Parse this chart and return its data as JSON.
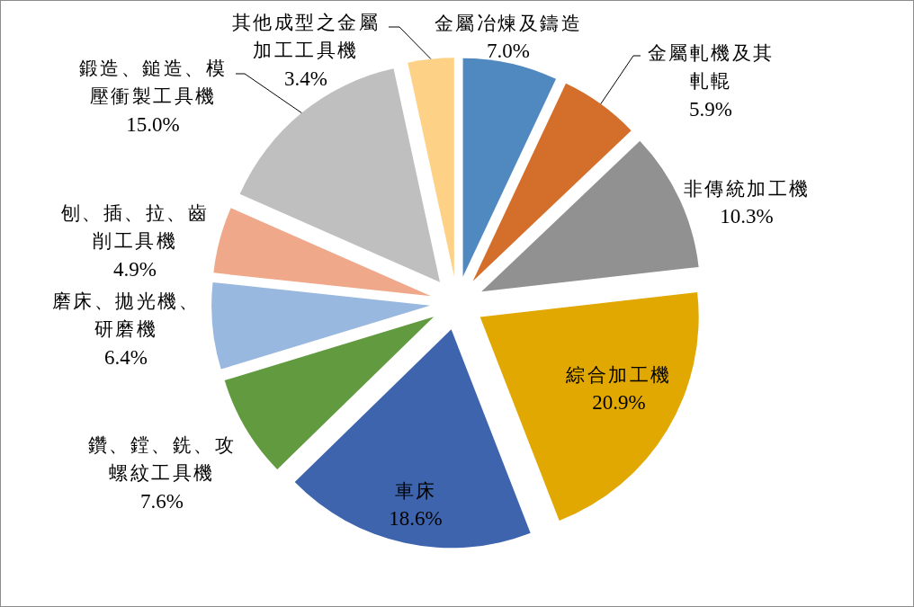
{
  "chart_data": {
    "type": "pie",
    "categories": [
      "金屬冶煉及鑄造",
      "金屬軋機及其軋輥",
      "非傳統加工機",
      "綜合加工機",
      "車床",
      "鑽、鏜、銑、攻螺紋工具機",
      "磨床、拋光機、研磨機",
      "刨、插、拉、齒削工具機",
      "鍛造、鎚造、模壓衝製工具機",
      "其他成型之金屬加工工具機"
    ],
    "values": [
      7.0,
      5.9,
      10.3,
      20.9,
      18.6,
      7.6,
      6.4,
      4.9,
      15.0,
      3.4
    ],
    "value_labels": [
      "7.0%",
      "5.9%",
      "10.3%",
      "20.9%",
      "18.6%",
      "7.6%",
      "6.4%",
      "4.9%",
      "15.0%",
      "3.4%"
    ],
    "colors": [
      "#5089c0",
      "#d46f2b",
      "#919191",
      "#e0a800",
      "#3e64ad",
      "#629a3f",
      "#98b8df",
      "#f0a88b",
      "#bfbfbf",
      "#fdd286"
    ]
  }
}
